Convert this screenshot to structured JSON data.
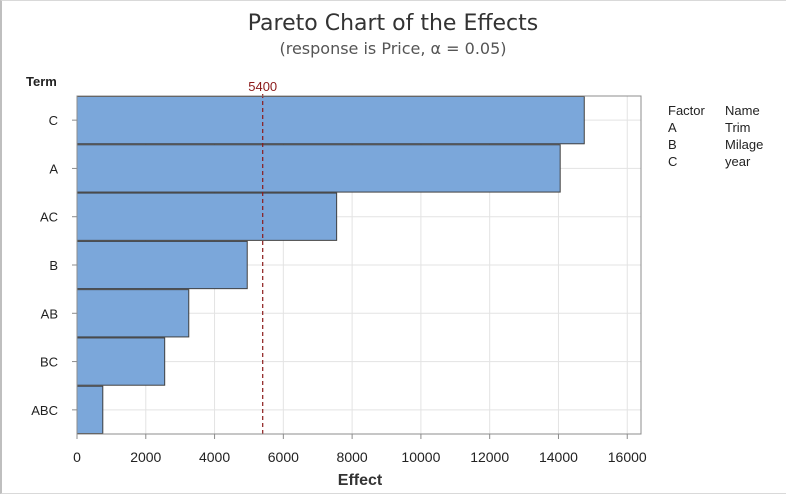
{
  "title": "Pareto Chart of the Effects",
  "subtitle": "(response is Price, α = 0.05)",
  "legend": {
    "headers": [
      "Factor",
      "Name"
    ],
    "rows": [
      {
        "factor": "A",
        "name": "Trim"
      },
      {
        "factor": "B",
        "name": "Milage"
      },
      {
        "factor": "C",
        "name": "year"
      }
    ]
  },
  "chart_data": {
    "type": "bar",
    "orientation": "horizontal",
    "title": "Pareto Chart of the Effects",
    "subtitle": "(response is Price, α = 0.05)",
    "xlabel": "Effect",
    "ylabel": "Term",
    "categories": [
      "C",
      "A",
      "AC",
      "B",
      "AB",
      "BC",
      "ABC"
    ],
    "values": [
      14750,
      14050,
      7550,
      4950,
      3250,
      2550,
      750
    ],
    "xlim": [
      0,
      16400
    ],
    "xticks": [
      0,
      2000,
      4000,
      6000,
      8000,
      10000,
      12000,
      14000,
      16000
    ],
    "xtick_labels": [
      "0",
      "2000",
      "4000",
      "6000",
      "8000",
      "10000",
      "12000",
      "14000",
      "16000"
    ],
    "reference_line": {
      "value": 5400,
      "label": "5400"
    },
    "grid": true,
    "colors": {
      "bar": "#7ba7da",
      "bar_edge": "#3f3f3f",
      "reference": "#8b1a1a",
      "grid": "#e3e3e3"
    }
  }
}
